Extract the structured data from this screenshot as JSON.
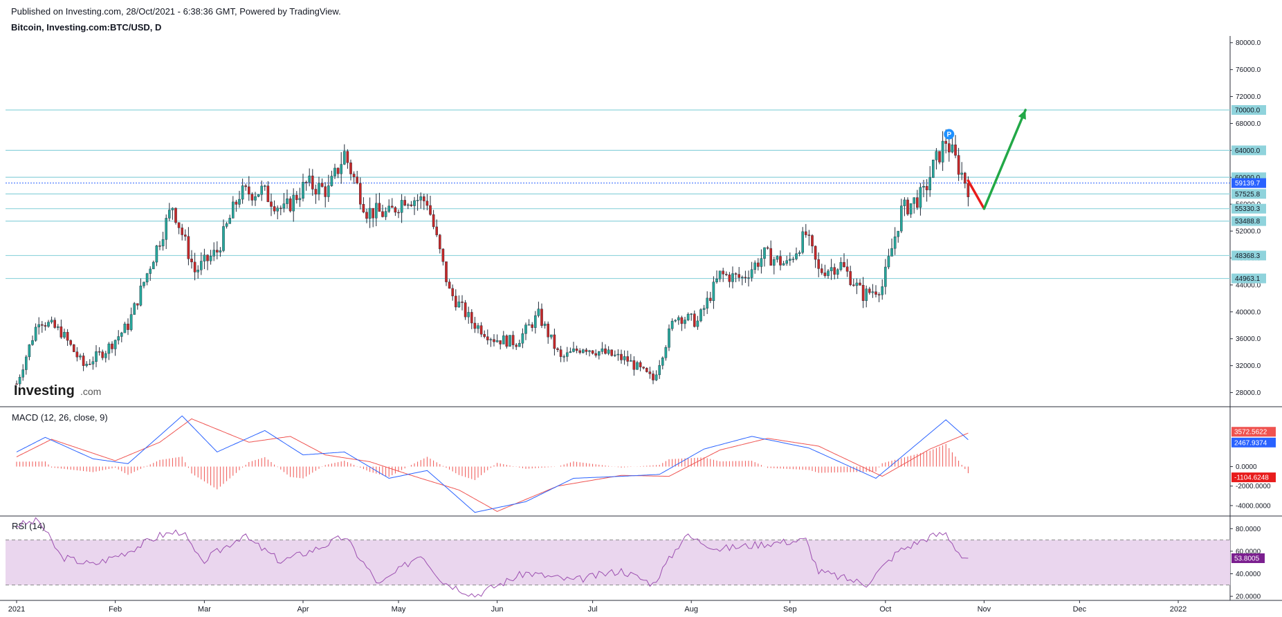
{
  "header": {
    "published": "Published on Investing.com, 28/Oct/2021 - 6:38:36 GMT, Powered by TradingView.",
    "symbol": "Bitcoin, Investing.com:BTC/USD, D"
  },
  "logo": {
    "main": "Investing",
    "suffix": ".com"
  },
  "colors": {
    "up": "#26a69a",
    "down": "#ef5350",
    "candle_body_up": "#26a69a",
    "candle_body_down": "#c62828",
    "hline": "#8fd3dc",
    "tag_bg": "#8fd3dc",
    "price_tag": "#2962ff",
    "macd_line": "#2962ff",
    "signal_line": "#ef5350",
    "hist": "#ef5350",
    "rsi_line": "#9c4fb0",
    "rsi_band": "#ead6ee",
    "arrow_down": "#e81c1c",
    "arrow_up": "#22a847"
  },
  "chart_data": [
    {
      "type": "candlestick",
      "title": "Bitcoin, Investing.com:BTC/USD, D",
      "ylim": [
        26000,
        81000
      ],
      "y_ticks": [
        28000,
        32000,
        36000,
        40000,
        44000,
        48000,
        52000,
        56000,
        60000,
        64000,
        68000,
        72000,
        76000,
        80000
      ],
      "y_tick_labels": [
        "28000.0",
        "32000.0",
        "36000.0",
        "40000.0",
        "44000.0",
        "48000.0",
        "52000.0",
        "56000.0",
        "60000.0",
        "64000.0",
        "68000.0",
        "72000.0",
        "76000.0",
        "80000.0"
      ],
      "x_month_labels": [
        "2021",
        "Feb",
        "Mar",
        "Apr",
        "May",
        "Jun",
        "Jul",
        "Aug",
        "Sep",
        "Oct",
        "Nov",
        "Dec",
        "2022"
      ],
      "close_path": [
        [
          "2021-01-01",
          29300
        ],
        [
          "2021-01-08",
          39000
        ],
        [
          "2021-01-15",
          37000
        ],
        [
          "2021-01-22",
          32000
        ],
        [
          "2021-01-29",
          34300
        ],
        [
          "2021-02-05",
          38000
        ],
        [
          "2021-02-12",
          47000
        ],
        [
          "2021-02-19",
          55800
        ],
        [
          "2021-02-26",
          46000
        ],
        [
          "2021-03-05",
          49000
        ],
        [
          "2021-03-12",
          57500
        ],
        [
          "2021-03-19",
          58000
        ],
        [
          "2021-03-26",
          55000
        ],
        [
          "2021-04-02",
          59000
        ],
        [
          "2021-04-09",
          58000
        ],
        [
          "2021-04-14",
          63500
        ],
        [
          "2021-04-21",
          55000
        ],
        [
          "2021-04-28",
          54500
        ],
        [
          "2021-05-03",
          57000
        ],
        [
          "2021-05-10",
          56500
        ],
        [
          "2021-05-17",
          43000
        ],
        [
          "2021-05-24",
          38500
        ],
        [
          "2021-05-31",
          36000
        ],
        [
          "2021-06-07",
          35500
        ],
        [
          "2021-06-14",
          39500
        ],
        [
          "2021-06-21",
          33000
        ],
        [
          "2021-06-28",
          34800
        ],
        [
          "2021-07-05",
          33800
        ],
        [
          "2021-07-12",
          32800
        ],
        [
          "2021-07-20",
          29900
        ],
        [
          "2021-07-27",
          39500
        ],
        [
          "2021-08-03",
          38500
        ],
        [
          "2021-08-10",
          45500
        ],
        [
          "2021-08-17",
          45000
        ],
        [
          "2021-08-24",
          48500
        ],
        [
          "2021-08-31",
          47000
        ],
        [
          "2021-09-06",
          51500
        ],
        [
          "2021-09-10",
          46000
        ],
        [
          "2021-09-17",
          47000
        ],
        [
          "2021-09-24",
          42500
        ],
        [
          "2021-09-30",
          43800
        ],
        [
          "2021-10-06",
          55000
        ],
        [
          "2021-10-13",
          57500
        ],
        [
          "2021-10-16",
          61500
        ],
        [
          "2021-10-20",
          65500
        ],
        [
          "2021-10-24",
          61500
        ],
        [
          "2021-10-27",
          58500
        ]
      ],
      "horizontal_levels": [
        {
          "value": 70000,
          "label": "70000.0"
        },
        {
          "value": 64000,
          "label": "64000.0"
        },
        {
          "value": 60000,
          "label": "60000.0"
        },
        {
          "value": 57525.8,
          "label": "57525.8"
        },
        {
          "value": 55330.3,
          "label": "55330.3"
        },
        {
          "value": 53488.8,
          "label": "53488.8"
        },
        {
          "value": 48368.3,
          "label": "48368.3"
        },
        {
          "value": 44963.1,
          "label": "44963.1"
        }
      ],
      "last_price": {
        "value": 59139.7,
        "label": "59139.7"
      },
      "projection": [
        [
          "2021-10-27",
          59500
        ],
        [
          "2021-11-01",
          55330
        ],
        [
          "2021-11-14",
          70000
        ]
      ],
      "marker": "P"
    },
    {
      "type": "line",
      "title": "MACD (12, 26, close, 9)",
      "ylim": [
        -5000,
        6000
      ],
      "y_ticks": [
        0,
        -2000,
        -4000
      ],
      "y_tick_labels": [
        "0.0000",
        "-2000.0000",
        "-4000.0000"
      ],
      "series": [
        {
          "name": "MACD",
          "values_path": [
            [
              "2021-01-01",
              1500
            ],
            [
              "2021-01-10",
              3000
            ],
            [
              "2021-01-25",
              800
            ],
            [
              "2021-02-05",
              300
            ],
            [
              "2021-02-22",
              5200
            ],
            [
              "2021-03-05",
              1500
            ],
            [
              "2021-03-20",
              3700
            ],
            [
              "2021-04-01",
              1200
            ],
            [
              "2021-04-14",
              1500
            ],
            [
              "2021-04-28",
              -1200
            ],
            [
              "2021-05-10",
              -400
            ],
            [
              "2021-05-25",
              -4700
            ],
            [
              "2021-06-10",
              -3600
            ],
            [
              "2021-06-25",
              -1200
            ],
            [
              "2021-07-10",
              -1000
            ],
            [
              "2021-07-22",
              -800
            ],
            [
              "2021-08-05",
              1800
            ],
            [
              "2021-08-20",
              3100
            ],
            [
              "2021-09-07",
              1900
            ],
            [
              "2021-09-28",
              -1200
            ],
            [
              "2021-10-20",
              4800
            ],
            [
              "2021-10-28",
              2467.9374
            ]
          ],
          "label": "2467.9374"
        },
        {
          "name": "Signal",
          "values_path": [
            [
              "2021-01-01",
              1000
            ],
            [
              "2021-01-12",
              2800
            ],
            [
              "2021-02-01",
              600
            ],
            [
              "2021-02-15",
              2500
            ],
            [
              "2021-02-25",
              4900
            ],
            [
              "2021-03-15",
              2500
            ],
            [
              "2021-03-28",
              3100
            ],
            [
              "2021-04-08",
              1200
            ],
            [
              "2021-04-22",
              500
            ],
            [
              "2021-05-05",
              -900
            ],
            [
              "2021-05-20",
              -2400
            ],
            [
              "2021-06-01",
              -4600
            ],
            [
              "2021-06-20",
              -2000
            ],
            [
              "2021-07-10",
              -900
            ],
            [
              "2021-07-25",
              -1000
            ],
            [
              "2021-08-10",
              1700
            ],
            [
              "2021-08-25",
              2900
            ],
            [
              "2021-09-10",
              2100
            ],
            [
              "2021-09-30",
              -1000
            ],
            [
              "2021-10-15",
              1800
            ],
            [
              "2021-10-28",
              3572.5622
            ]
          ],
          "label": "3572.5622"
        },
        {
          "name": "Histogram",
          "last": -1104.6248,
          "label": "-1104.6248"
        }
      ]
    },
    {
      "type": "line",
      "title": "RSI (14)",
      "ylim": [
        17,
        90
      ],
      "y_ticks": [
        80,
        60,
        40,
        20
      ],
      "y_tick_labels": [
        "80.0000",
        "60.0000",
        "40.0000",
        "20.0000"
      ],
      "band": [
        30,
        70
      ],
      "series": [
        {
          "name": "RSI",
          "values_path": [
            [
              "2021-01-01",
              83
            ],
            [
              "2021-01-08",
              87
            ],
            [
              "2021-01-15",
              55
            ],
            [
              "2021-01-25",
              48
            ],
            [
              "2021-02-05",
              60
            ],
            [
              "2021-02-15",
              74
            ],
            [
              "2021-02-22",
              78
            ],
            [
              "2021-02-28",
              50
            ],
            [
              "2021-03-13",
              74
            ],
            [
              "2021-03-25",
              51
            ],
            [
              "2021-04-05",
              62
            ],
            [
              "2021-04-14",
              73
            ],
            [
              "2021-04-25",
              30
            ],
            [
              "2021-05-08",
              58
            ],
            [
              "2021-05-15",
              33
            ],
            [
              "2021-05-25",
              21
            ],
            [
              "2021-06-10",
              41
            ],
            [
              "2021-06-25",
              34
            ],
            [
              "2021-07-10",
              43
            ],
            [
              "2021-07-20",
              31
            ],
            [
              "2021-07-30",
              74
            ],
            [
              "2021-08-10",
              62
            ],
            [
              "2021-08-25",
              67
            ],
            [
              "2021-09-06",
              70
            ],
            [
              "2021-09-10",
              42
            ],
            [
              "2021-09-25",
              31
            ],
            [
              "2021-10-05",
              60
            ],
            [
              "2021-10-15",
              73
            ],
            [
              "2021-10-20",
              76
            ],
            [
              "2021-10-25",
              55
            ],
            [
              "2021-10-28",
              53.8005
            ]
          ],
          "label": "53.8005"
        }
      ]
    }
  ]
}
